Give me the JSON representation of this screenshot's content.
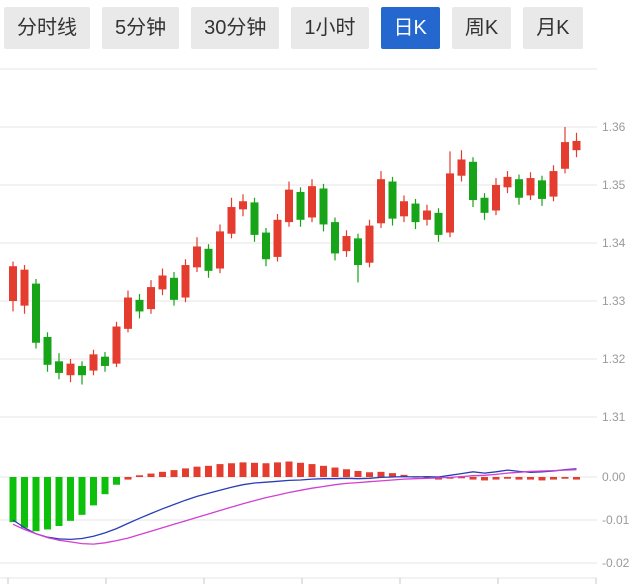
{
  "toolbar": {
    "tabs": [
      {
        "label": "分时线",
        "name": "tab-timeline",
        "active": false
      },
      {
        "label": "5分钟",
        "name": "tab-5min",
        "active": false
      },
      {
        "label": "30分钟",
        "name": "tab-30min",
        "active": false
      },
      {
        "label": "1小时",
        "name": "tab-1hour",
        "active": false
      },
      {
        "label": "日K",
        "name": "tab-daily-k",
        "active": true
      },
      {
        "label": "周K",
        "name": "tab-weekly-k",
        "active": false
      },
      {
        "label": "月K",
        "name": "tab-monthly-k",
        "active": false
      }
    ]
  },
  "colors": {
    "accent": "#2468cf",
    "tab_bg": "#e9e9e9",
    "tab_text": "#333333"
  },
  "chart_data": {
    "type": "candlestick",
    "title": "",
    "xlabel": "",
    "ylabel": "",
    "price_axis": {
      "grid": [
        1.37,
        1.36,
        1.35,
        1.34,
        1.33,
        1.32,
        1.31
      ],
      "ticks": [
        {
          "v": 1.36,
          "label": "1.36"
        },
        {
          "v": 1.35,
          "label": "1.35"
        },
        {
          "v": 1.34,
          "label": "1.34"
        },
        {
          "v": 1.33,
          "label": "1.33"
        },
        {
          "v": 1.32,
          "label": "1.32"
        },
        {
          "v": 1.31,
          "label": "1.31"
        }
      ],
      "range": [
        1.305,
        1.372
      ]
    },
    "macd_axis": {
      "ticks": [
        {
          "v": 0,
          "label": "0.00"
        },
        {
          "v": -0.01,
          "label": "-0.01"
        },
        {
          "v": -0.02,
          "label": "-0.02"
        }
      ],
      "range": [
        -0.022,
        0.005
      ]
    },
    "candles_ochl": [
      [
        1.33,
        1.336,
        1.3368,
        1.3282
      ],
      [
        1.3292,
        1.3354,
        1.3362,
        1.3278
      ],
      [
        1.333,
        1.3228,
        1.3338,
        1.3218
      ],
      [
        1.3238,
        1.319,
        1.3246,
        1.3178
      ],
      [
        1.3196,
        1.3176,
        1.321,
        1.3165
      ],
      [
        1.3172,
        1.3192,
        1.32,
        1.316
      ],
      [
        1.3188,
        1.3172,
        1.3196,
        1.3156
      ],
      [
        1.318,
        1.3208,
        1.3216,
        1.3172
      ],
      [
        1.3204,
        1.3188,
        1.3212,
        1.3178
      ],
      [
        1.3192,
        1.3256,
        1.3264,
        1.3186
      ],
      [
        1.3252,
        1.3306,
        1.3318,
        1.3246
      ],
      [
        1.3302,
        1.3282,
        1.3312,
        1.327
      ],
      [
        1.3286,
        1.3324,
        1.3336,
        1.3278
      ],
      [
        1.332,
        1.3344,
        1.3356,
        1.331
      ],
      [
        1.334,
        1.3302,
        1.335,
        1.3292
      ],
      [
        1.3306,
        1.3362,
        1.3372,
        1.3298
      ],
      [
        1.3358,
        1.3394,
        1.341,
        1.335
      ],
      [
        1.339,
        1.3352,
        1.3398,
        1.334
      ],
      [
        1.3356,
        1.342,
        1.3432,
        1.3348
      ],
      [
        1.3416,
        1.3462,
        1.3478,
        1.3408
      ],
      [
        1.3458,
        1.3472,
        1.3484,
        1.3446
      ],
      [
        1.347,
        1.3414,
        1.3478,
        1.3402
      ],
      [
        1.3418,
        1.3372,
        1.3426,
        1.336
      ],
      [
        1.3376,
        1.344,
        1.345,
        1.3368
      ],
      [
        1.3436,
        1.3492,
        1.3506,
        1.3428
      ],
      [
        1.3488,
        1.344,
        1.3496,
        1.3428
      ],
      [
        1.3444,
        1.3498,
        1.351,
        1.3436
      ],
      [
        1.3494,
        1.3432,
        1.3502,
        1.342
      ],
      [
        1.3436,
        1.3382,
        1.3444,
        1.337
      ],
      [
        1.3386,
        1.3412,
        1.3422,
        1.3376
      ],
      [
        1.3408,
        1.3362,
        1.3416,
        1.3332
      ],
      [
        1.3366,
        1.343,
        1.344,
        1.3358
      ],
      [
        1.3434,
        1.351,
        1.3524,
        1.3426
      ],
      [
        1.3506,
        1.3442,
        1.3514,
        1.343
      ],
      [
        1.3446,
        1.3472,
        1.3482,
        1.3436
      ],
      [
        1.3468,
        1.3436,
        1.3476,
        1.3424
      ],
      [
        1.344,
        1.3456,
        1.3466,
        1.343
      ],
      [
        1.3452,
        1.3414,
        1.346,
        1.3402
      ],
      [
        1.3418,
        1.352,
        1.3558,
        1.341
      ],
      [
        1.3516,
        1.3544,
        1.356,
        1.3506
      ],
      [
        1.354,
        1.3474,
        1.3548,
        1.3462
      ],
      [
        1.3478,
        1.3452,
        1.3486,
        1.344
      ],
      [
        1.3456,
        1.35,
        1.3512,
        1.3448
      ],
      [
        1.3496,
        1.3514,
        1.3524,
        1.3486
      ],
      [
        1.351,
        1.3478,
        1.3518,
        1.3466
      ],
      [
        1.3482,
        1.3512,
        1.3522,
        1.3474
      ],
      [
        1.3508,
        1.3476,
        1.3516,
        1.3464
      ],
      [
        1.348,
        1.3524,
        1.3534,
        1.3472
      ],
      [
        1.3528,
        1.3574,
        1.36,
        1.352
      ],
      [
        1.356,
        1.3576,
        1.359,
        1.3548
      ]
    ],
    "macd": {
      "hist": [
        -0.0105,
        -0.0118,
        -0.0126,
        -0.0122,
        -0.0114,
        -0.0102,
        -0.0088,
        -0.0066,
        -0.004,
        -0.0018,
        -0.0006,
        0.0004,
        0.0008,
        0.0012,
        0.0016,
        0.002,
        0.0024,
        0.0026,
        0.003,
        0.0032,
        0.0034,
        0.0033,
        0.0032,
        0.0034,
        0.0036,
        0.0033,
        0.003,
        0.0026,
        0.0022,
        0.0018,
        0.0014,
        0.0011,
        0.0012,
        0.0009,
        0.0005,
        0.0002,
        -0.0002,
        -0.0006,
        -0.0004,
        -0.0003,
        -0.0006,
        -0.0008,
        -0.0006,
        -0.0004,
        -0.0006,
        -0.0006,
        -0.0008,
        -0.0006,
        -0.0004,
        -0.0006
      ],
      "dif": [
        -0.01,
        -0.0118,
        -0.0132,
        -0.014,
        -0.0144,
        -0.0145,
        -0.0143,
        -0.0138,
        -0.013,
        -0.012,
        -0.0108,
        -0.0096,
        -0.0085,
        -0.0074,
        -0.0064,
        -0.0054,
        -0.0045,
        -0.0038,
        -0.0031,
        -0.0024,
        -0.0018,
        -0.0014,
        -0.0012,
        -0.001,
        -0.0008,
        -0.0007,
        -0.0005,
        -0.0004,
        -0.0004,
        -0.0003,
        -0.0004,
        -0.0003,
        -0.0001,
        0.0,
        0.0001,
        0.0,
        0.0001,
        0.0,
        0.0004,
        0.0008,
        0.0012,
        0.0009,
        0.0012,
        0.0016,
        0.0013,
        0.0011,
        0.0012,
        0.0014,
        0.0017,
        0.0019
      ],
      "dea": [
        -0.011,
        -0.0122,
        -0.0132,
        -0.0141,
        -0.0147,
        -0.0151,
        -0.0155,
        -0.0156,
        -0.0153,
        -0.0148,
        -0.0142,
        -0.0134,
        -0.0126,
        -0.0118,
        -0.011,
        -0.0102,
        -0.0094,
        -0.0086,
        -0.0078,
        -0.007,
        -0.0062,
        -0.0055,
        -0.0048,
        -0.0042,
        -0.0036,
        -0.0031,
        -0.0026,
        -0.0022,
        -0.0018,
        -0.0015,
        -0.0013,
        -0.0011,
        -0.0009,
        -0.0007,
        -0.0005,
        -0.0004,
        -0.0003,
        -0.0002,
        -0.0001,
        0.0001,
        0.0003,
        0.0004,
        0.0006,
        0.0009,
        0.0011,
        0.0013,
        0.0014,
        0.0015,
        0.0016,
        0.0017
      ]
    },
    "colors": {
      "up": "#e43d30",
      "down": "#18a418",
      "hist_up": "#e43d30",
      "hist_down": "#0cc00c",
      "dif_line": "#2a3db8",
      "dea_line": "#d23fd2",
      "grid": "#e4e4e4",
      "axis_tick": "#c8c8c8",
      "axis_text": "#9a9a9a"
    },
    "legend": [],
    "grid": true
  }
}
